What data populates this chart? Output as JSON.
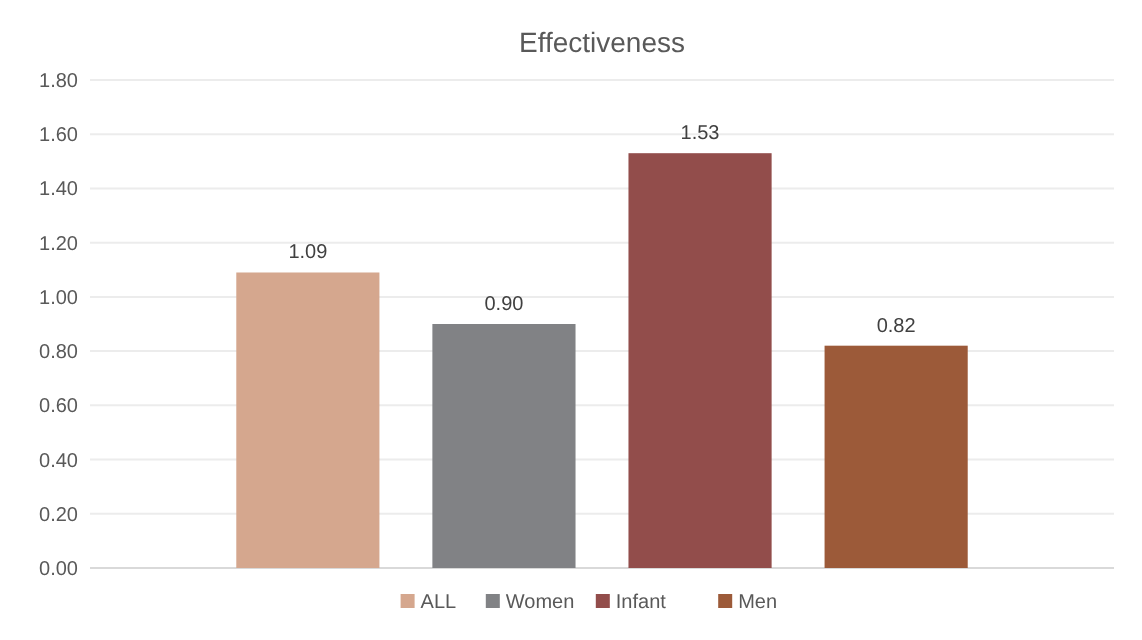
{
  "chart_data": {
    "type": "bar",
    "title": "Effectiveness",
    "categories": [
      null
    ],
    "series": [
      {
        "name": "ALL",
        "color": "#d5a78e",
        "values": [
          1.09
        ],
        "value_labels": [
          "1.09"
        ]
      },
      {
        "name": "Women",
        "color": "#818285",
        "values": [
          0.9
        ],
        "value_labels": [
          "0.90"
        ]
      },
      {
        "name": "Infant",
        "color": "#924d4b",
        "values": [
          1.53
        ],
        "value_labels": [
          "1.53"
        ]
      },
      {
        "name": "Men",
        "color": "#9c5a39",
        "values": [
          0.82
        ],
        "value_labels": [
          "0.82"
        ]
      }
    ],
    "ylim": [
      0,
      1.8
    ],
    "yticks": [
      {
        "value": 0,
        "label": "0.00"
      },
      {
        "value": 0.2,
        "label": "0.20"
      },
      {
        "value": 0.4,
        "label": "0.40"
      },
      {
        "value": 0.6,
        "label": "0.60"
      },
      {
        "value": 0.8,
        "label": "0.80"
      },
      {
        "value": 1,
        "label": "1.00"
      },
      {
        "value": 1.2,
        "label": "1.20"
      },
      {
        "value": 1.4,
        "label": "1.40"
      },
      {
        "value": 1.6,
        "label": "1.60"
      },
      {
        "value": 1.8,
        "label": "1.80"
      }
    ],
    "grid": "y",
    "legend": "bottom"
  }
}
